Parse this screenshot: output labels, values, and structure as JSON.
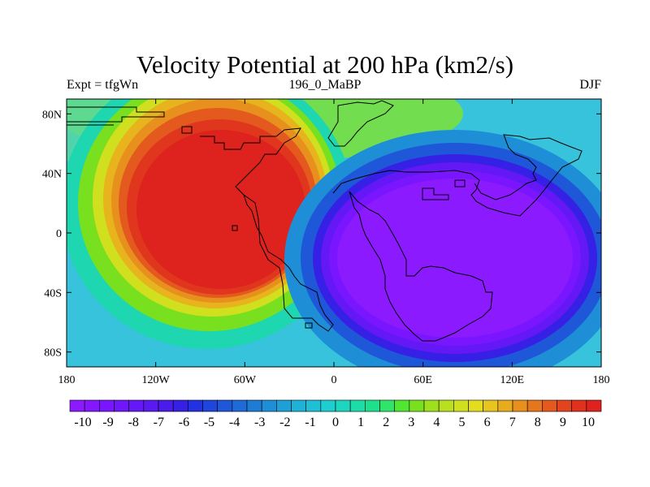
{
  "title": "Velocity Potential at 200 hPa (km2/s)",
  "left_label": "Expt = tfgWn",
  "center_label": "196_0_MaBP",
  "right_label": "DJF",
  "lat_ticks": [
    {
      "label": "80N",
      "lat": 80
    },
    {
      "label": "40N",
      "lat": 40
    },
    {
      "label": "0",
      "lat": 0
    },
    {
      "label": "40S",
      "lat": -40
    },
    {
      "label": "80S",
      "lat": -80
    }
  ],
  "lon_ticks": [
    {
      "label": "180",
      "lon": -180
    },
    {
      "label": "120W",
      "lon": -120
    },
    {
      "label": "60W",
      "lon": -60
    },
    {
      "label": "0",
      "lon": 0
    },
    {
      "label": "60E",
      "lon": 60
    },
    {
      "label": "120E",
      "lon": 120
    },
    {
      "label": "180",
      "lon": 180
    }
  ],
  "colorbar": {
    "colors": [
      "#8c1aff",
      "#8417ff",
      "#7a16ff",
      "#6f16fb",
      "#6318f5",
      "#5a1aef",
      "#4a1cea",
      "#3620e6",
      "#2232e2",
      "#1e46dc",
      "#1e58d8",
      "#1e6ad6",
      "#1e7cd4",
      "#1e8ed6",
      "#1ea0d6",
      "#1eb2d6",
      "#1ec0d6",
      "#1ecdd0",
      "#1ed6c0",
      "#1edca8",
      "#1ee08c",
      "#30e46a",
      "#50e632",
      "#78e01e",
      "#9ee01e",
      "#b8e01e",
      "#d0e01e",
      "#e4dc1e",
      "#e8c41e",
      "#e8aa1e",
      "#e8901e",
      "#e4761e",
      "#e45a1e",
      "#e2441e",
      "#e0301e",
      "#de221e"
    ],
    "labels": [
      "-10",
      "-9",
      "-8",
      "-7",
      "-6",
      "-5",
      "-4",
      "-3",
      "-2",
      "-1",
      "0",
      "1",
      "2",
      "3",
      "4",
      "5",
      "6",
      "7",
      "8",
      "9",
      "10"
    ]
  },
  "chart_data": {
    "type": "contour-map",
    "variable": "Velocity Potential",
    "level": "200 hPa",
    "units": "km2/s",
    "season": "DJF",
    "lon_range": [
      -180,
      180
    ],
    "lat_range": [
      -90,
      90
    ],
    "levels": [
      -10,
      -9,
      -8,
      -7,
      -6,
      -5,
      -4,
      -3,
      -2,
      -1,
      0,
      1,
      2,
      3,
      4,
      5,
      6,
      7,
      8,
      9,
      10
    ],
    "features": [
      {
        "name": "maximum",
        "lon": -80,
        "lat": 5,
        "value": 10
      },
      {
        "name": "minimum",
        "lon": 70,
        "lat": -20,
        "value": -10
      }
    ]
  }
}
